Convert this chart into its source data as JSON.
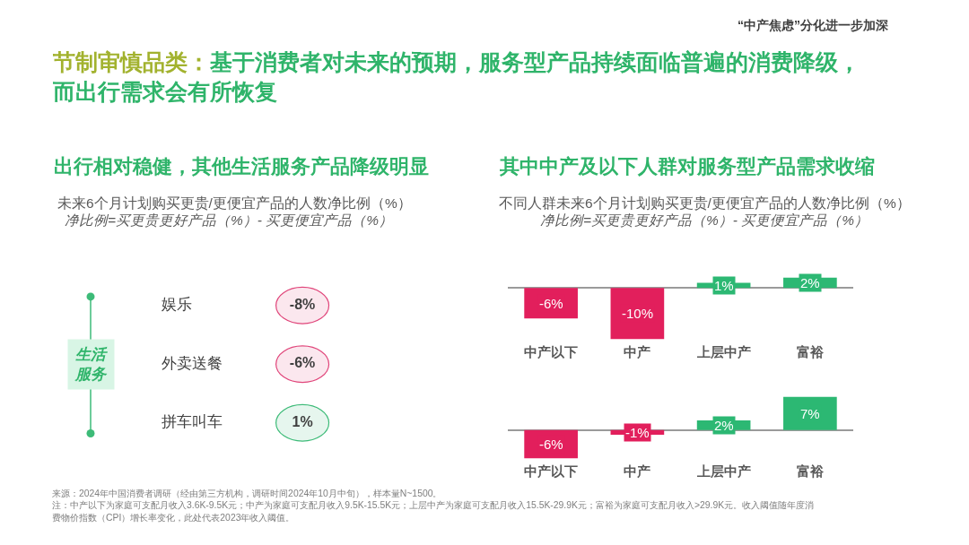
{
  "chart_data": [
    {
      "type": "other",
      "title": "节制审慎品类：基于消费者对未来的预期，服务型产品持续面临普遍的消费降级，而出行需求会有所恢复",
      "annotations": [
        "“中产焦虑”分化进一步加深",
        "来源：2024年中国消费者调研（经由第三方机构，调研时间2024年10月中旬），样本量N~1500。",
        "注：中产以下为家庭可支配月收入3.6K-9.5K元；中产为家庭可支配月收入9.5K-15.5K元；上层中产为家庭可支配月收入15.5K-29.9K元；富裕为家庭可支配月收入>29.9K元。收入阈值随年度消费物价指数（CPI）增长率变化，此处代表2023年收入阈值。"
      ]
    },
    {
      "type": "other",
      "title": "出行相对稳健，其他生活服务产品降级明显",
      "subtitle": "未来6个月计划购买更贵/更便宜产品的人数净比例（%）",
      "categories": [
        "娱乐",
        "外卖送餐",
        "拼车叫车"
      ],
      "values": [
        -8,
        -6,
        1
      ],
      "value_labels": [
        "-8%",
        "-6%",
        "1%"
      ],
      "colors": [
        "#e0457a",
        "#e0457a",
        "#3dbb78"
      ],
      "annotations": [
        "净比例=买更贵更好产品（%）- 买更便宜产品（%）",
        "生活服务"
      ]
    },
    {
      "type": "bar",
      "title": "其中中产及以下人群对服务型产品需求收缩",
      "subtitle": "不同人群未来6个月计划购买更贵/更便宜产品的人数净比例（%）",
      "categories": [
        "中产以下",
        "中产",
        "上层中产",
        "富裕"
      ],
      "values": [
        -6,
        -10,
        1,
        2
      ],
      "value_labels": [
        "-6%",
        "-10%",
        "1%",
        "2%"
      ],
      "colors": [
        "#e21f5c",
        "#e21f5c",
        "#2cb873",
        "#2cb873"
      ],
      "annotations": [
        "净比例=买更贵更好产品（%）- 买更便宜产品（%）"
      ]
    },
    {
      "type": "bar",
      "categories": [
        "中产以下",
        "中产",
        "上层中产",
        "富裕"
      ],
      "values": [
        -6,
        -1,
        2,
        7
      ],
      "value_labels": [
        "-6%",
        "-1%",
        "2%",
        "7%"
      ],
      "colors": [
        "#e21f5c",
        "#e21f5c",
        "#2cb873",
        "#2cb873"
      ]
    }
  ]
}
